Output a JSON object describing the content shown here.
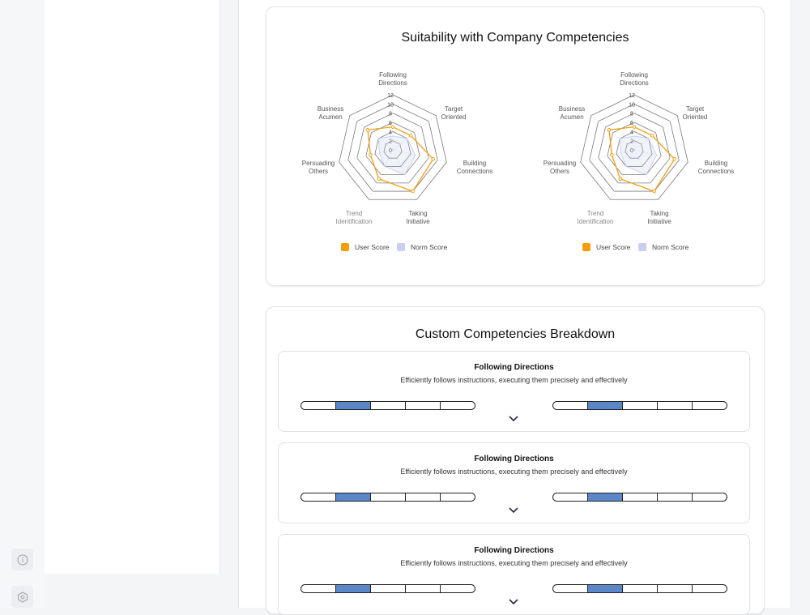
{
  "rail": {
    "icons": [
      "info-icon",
      "hexagon-settings-icon"
    ]
  },
  "suitability": {
    "title": "Suitability with Company Competencies",
    "axes": [
      "Following Directions",
      "Target Oriented",
      "Building Connections",
      "Taking Initiative",
      "Trend Identification",
      "Persuading Others",
      "Business Acumen"
    ],
    "ticks": [
      "0",
      "2",
      "4",
      "6",
      "8",
      "10",
      "12"
    ],
    "legend": {
      "user": "User Score",
      "norm": "Norm Score"
    },
    "colors": {
      "user": "#f59e0b",
      "norm": "#c7d0f0",
      "grid": "#7a7a7a"
    }
  },
  "chart_data": [
    {
      "type": "radar",
      "categories": [
        "Following Directions",
        "Target Oriented",
        "Building Connections",
        "Taking Initiative",
        "Trend Identification",
        "Persuading Others",
        "Business Acumen"
      ],
      "series": [
        {
          "name": "User Score",
          "values": [
            5,
            5,
            9,
            10,
            7,
            5,
            7
          ]
        },
        {
          "name": "Norm Score",
          "values": [
            3,
            4,
            5,
            6,
            4,
            3,
            4
          ]
        }
      ],
      "rlim": [
        0,
        12
      ]
    },
    {
      "type": "radar",
      "categories": [
        "Following Directions",
        "Target Oriented",
        "Building Connections",
        "Taking Initiative",
        "Trend Identification",
        "Persuading Others",
        "Business Acumen"
      ],
      "series": [
        {
          "name": "User Score",
          "values": [
            5,
            5,
            9,
            10,
            7,
            5,
            7
          ]
        },
        {
          "name": "Norm Score",
          "values": [
            3,
            4,
            5,
            6,
            4,
            3,
            4
          ]
        }
      ],
      "rlim": [
        0,
        12
      ]
    }
  ],
  "breakdown": {
    "title": "Custom Competencies Breakdown",
    "items": [
      {
        "title": "Following Directions",
        "description": "Efficiently follows instructions, executing them precisely and effectively",
        "left_level": 2,
        "right_level": 2
      },
      {
        "title": "Following Directions",
        "description": "Efficiently follows instructions, executing them precisely and effectively",
        "left_level": 2,
        "right_level": 2
      },
      {
        "title": "Following Directions",
        "description": "Efficiently follows instructions, executing them precisely and effectively",
        "left_level": 2,
        "right_level": 2
      }
    ]
  }
}
